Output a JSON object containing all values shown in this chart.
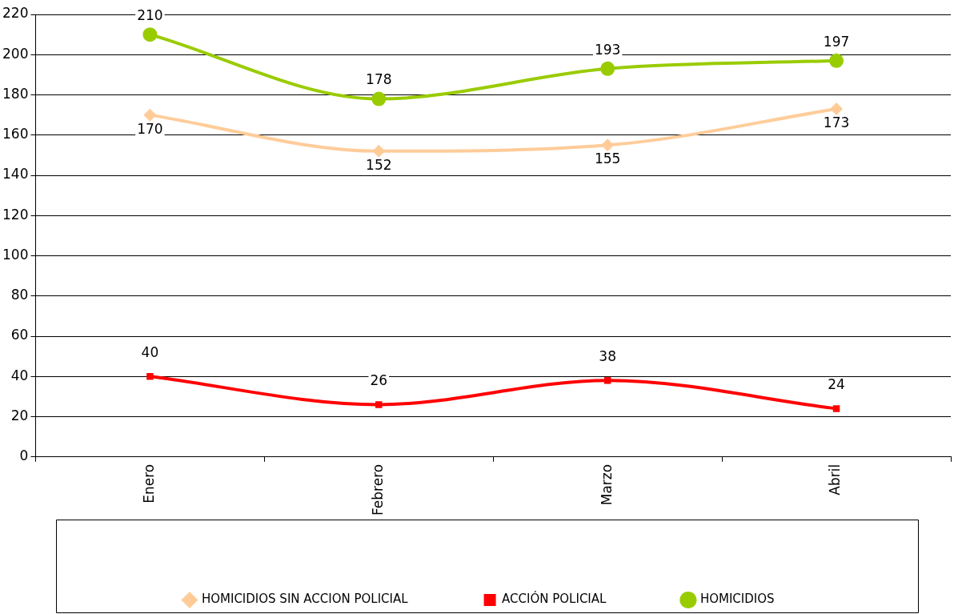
{
  "chart_data": {
    "type": "line",
    "categories": [
      "Enero",
      "Febrero",
      "Marzo",
      "Abril"
    ],
    "series": [
      {
        "name": "HOMICIDIOS SIN ACCION POLICIAL",
        "color": "#ffcc99",
        "marker": "diamond",
        "values": [
          170,
          152,
          155,
          173
        ]
      },
      {
        "name": "ACCIÓN POLICIAL",
        "color": "#ff0000",
        "marker": "square",
        "values": [
          40,
          26,
          38,
          24
        ]
      },
      {
        "name": "HOMICIDIOS",
        "color": "#99cc00",
        "marker": "circle",
        "values": [
          210,
          178,
          193,
          197
        ]
      }
    ],
    "ylim": [
      0,
      220
    ],
    "yticks": [
      0,
      20,
      40,
      60,
      80,
      100,
      120,
      140,
      160,
      180,
      200,
      220
    ],
    "grid": "y",
    "legend": "bottom",
    "data_labels": true,
    "line_style": "solid"
  }
}
